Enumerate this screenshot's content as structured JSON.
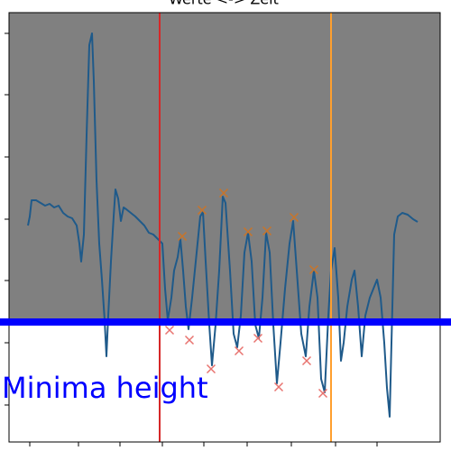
{
  "chart_data": {
    "type": "line",
    "title": "Werte <-> Zeit",
    "xlim": [
      0,
      478
    ],
    "ylim": [
      0,
      476
    ],
    "xticks": [
      23,
      77,
      123,
      170,
      216,
      264,
      313,
      362,
      408
    ],
    "yticks": [
      41,
      110,
      179,
      247,
      316,
      385,
      453
    ],
    "series": [
      {
        "color": "#1f5a8a",
        "x": [
          21,
          23,
          25,
          30,
          35,
          40,
          45,
          50,
          55,
          60,
          65,
          70,
          75,
          78,
          80,
          83,
          86,
          89,
          92,
          94,
          97,
          100,
          103,
          106,
          108,
          110,
          113,
          116,
          118,
          121,
          124,
          127,
          130,
          135,
          140,
          145,
          150,
          155,
          160,
          165,
          170,
          173,
          176,
          180,
          183,
          187,
          190,
          193,
          196,
          199,
          203,
          208,
          212,
          215,
          218,
          222,
          225,
          229,
          233,
          237,
          240,
          245,
          249,
          253,
          257,
          261,
          265,
          269,
          273,
          277,
          281,
          285,
          289,
          293,
          297,
          301,
          306,
          311,
          315,
          319,
          324,
          329,
          333,
          338,
          342,
          346,
          350,
          354,
          357,
          361,
          365,
          368,
          371,
          375,
          380,
          383,
          387,
          391,
          395,
          400,
          404,
          408,
          412,
          416,
          419,
          422,
          424,
          427,
          431,
          436,
          442,
          448,
          453
        ],
        "values": [
          240,
          250,
          268,
          268,
          265,
          262,
          264,
          260,
          262,
          254,
          250,
          248,
          240,
          220,
          200,
          230,
          340,
          440,
          453,
          400,
          290,
          220,
          180,
          135,
          95,
          140,
          200,
          250,
          280,
          270,
          245,
          260,
          258,
          254,
          250,
          245,
          240,
          232,
          230,
          225,
          220,
          170,
          135,
          160,
          190,
          205,
          225,
          190,
          150,
          125,
          160,
          210,
          250,
          255,
          200,
          130,
          85,
          130,
          190,
          272,
          265,
          190,
          120,
          105,
          140,
          210,
          232,
          200,
          130,
          115,
          160,
          232,
          210,
          130,
          65,
          110,
          170,
          220,
          245,
          190,
          120,
          95,
          150,
          190,
          160,
          70,
          55,
          140,
          190,
          215,
          160,
          90,
          110,
          150,
          180,
          190,
          150,
          95,
          140,
          160,
          170,
          180,
          160,
          110,
          60,
          28,
          110,
          230,
          250,
          254,
          252,
          247,
          244
        ]
      }
    ],
    "peaks": {
      "color": "#c8742a",
      "x": [
        192,
        214,
        238,
        265,
        286,
        316,
        338
      ],
      "values": [
        228,
        257,
        276,
        233,
        234,
        249,
        191
      ]
    },
    "minima": {
      "color": "#e8736f",
      "x": [
        178,
        200,
        224,
        255,
        276,
        299,
        330,
        348
      ],
      "values": [
        124,
        113,
        81,
        101,
        115,
        61,
        90,
        54
      ]
    },
    "vlines": [
      {
        "value": 167,
        "color": "#d62728"
      },
      {
        "value": 357,
        "color": "#ff9f2e"
      }
    ],
    "threshold": {
      "label": "Minima height",
      "value": 133,
      "color": "#0000ff"
    }
  }
}
